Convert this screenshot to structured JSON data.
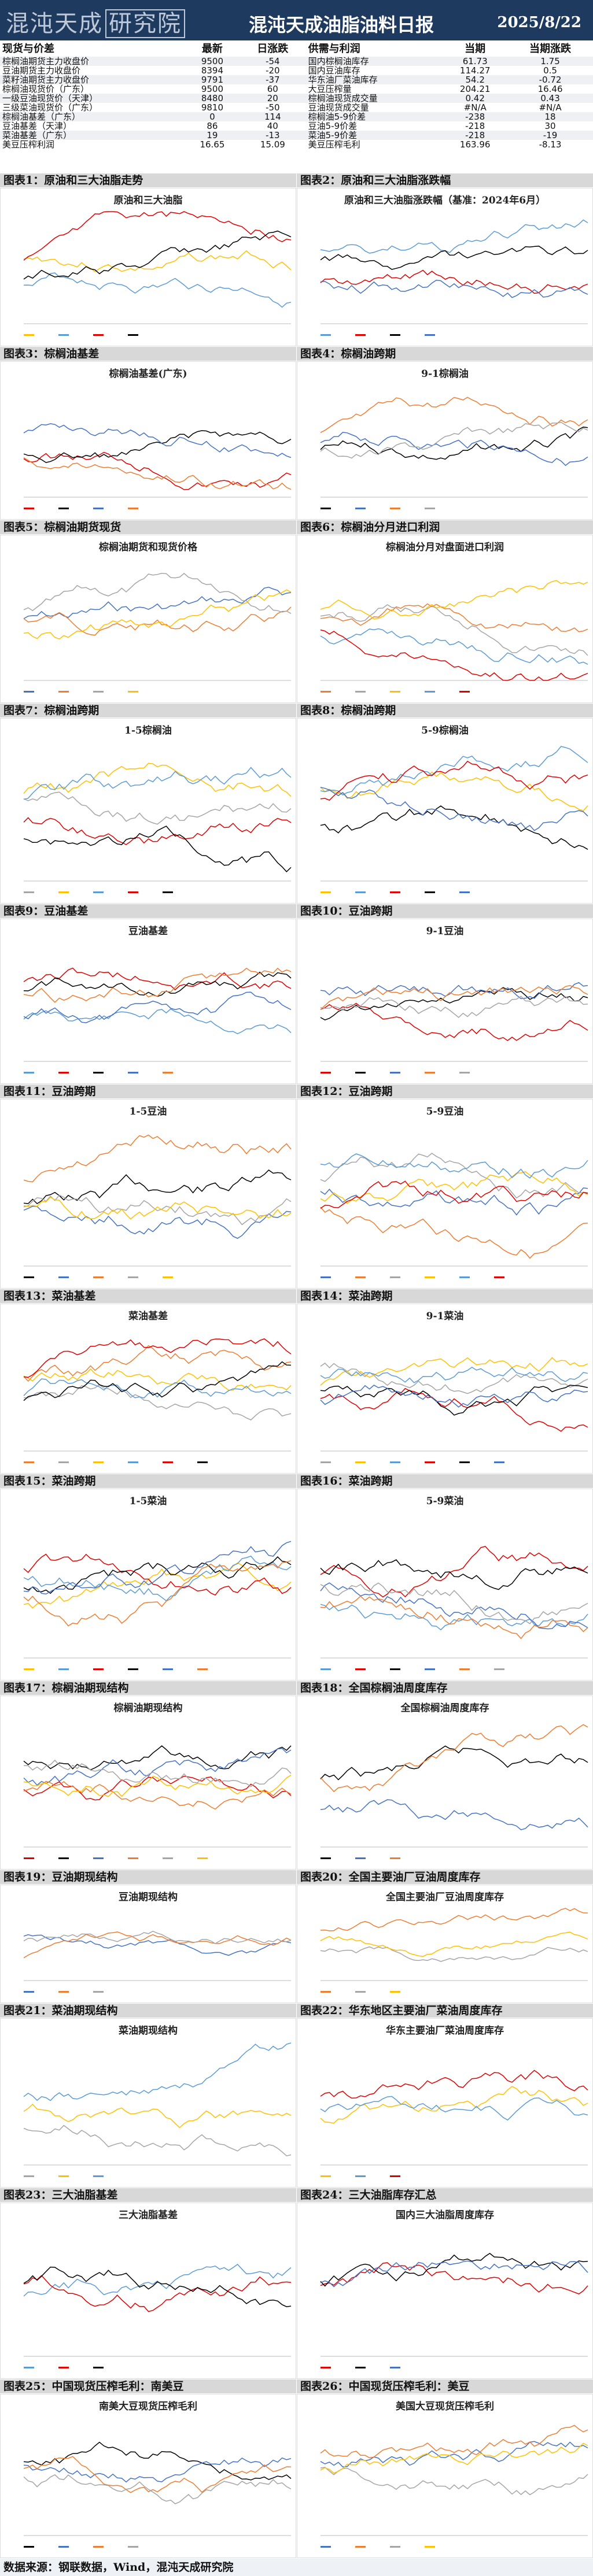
{
  "header": {
    "logo_text": "混沌天成",
    "logo_box": "研究院",
    "title": "混沌天成油脂油料日报",
    "date": "2025/8/22"
  },
  "quotes": {
    "headers": [
      "现货与价差",
      "最新",
      "日涨跌",
      "供需与利润",
      "当期",
      "当期涨跌"
    ],
    "rows": [
      [
        "棕榈油期货主力收盘价",
        "9500",
        "-54",
        "国内棕榈油库存",
        "61.73",
        "1.75"
      ],
      [
        "豆油期货主力收盘价",
        "8394",
        "-20",
        "国内豆油库存",
        "114.27",
        "0.5"
      ],
      [
        "菜籽油期货主力收盘价",
        "9791",
        "-37",
        "华东油厂菜油库存",
        "54.2",
        "-0.72"
      ],
      [
        "棕榈油现货价（广东）",
        "9500",
        "60",
        "大豆压榨量",
        "204.21",
        "16.46"
      ],
      [
        "一级豆油现货价（天津）",
        "8480",
        "20",
        "棕榈油现货成交量",
        "0.42",
        "0.43"
      ],
      [
        "三级菜油现货价（广东）",
        "9810",
        "-50",
        "豆油现货成交量",
        "#N/A",
        "#N/A"
      ],
      [
        "棕榈油基差（广东）",
        "0",
        "114",
        "棕榈油5-9价差",
        "-238",
        "18"
      ],
      [
        "豆油基差（天津）",
        "86",
        "40",
        "豆油5-9价差",
        "-218",
        "30"
      ],
      [
        "菜油基差（广东）",
        "19",
        "-13",
        "菜油5-9价差",
        "-218",
        "-19"
      ],
      [
        "美豆压榨利润",
        "16.65",
        "15.09",
        "美豆压榨毛利",
        "163.96",
        "-8.13"
      ]
    ]
  },
  "sections": [
    [
      "图表1：原油和三大油脂走势",
      "图表2：原油和三大油脂涨跌幅"
    ],
    [
      "图表3：棕榈油基差",
      "图表4：棕榈油跨期"
    ],
    [
      "图表5：棕榈油期货现货",
      "图表6：棕榈油分月进口利润"
    ],
    [
      "图表7：棕榈油跨期",
      "图表8：棕榈油跨期"
    ],
    [
      "图表9：豆油基差",
      "图表10：豆油跨期"
    ],
    [
      "图表11：豆油跨期",
      "图表12：豆油跨期"
    ],
    [
      "图表13：菜油基差",
      "图表14：菜油跨期"
    ],
    [
      "图表15：菜油跨期",
      "图表16：菜油跨期"
    ],
    [
      "图表17：棕榈油期现结构",
      "图表18：全国棕榈油周度库存"
    ],
    [
      "图表19：豆油期现结构",
      "图表20：全国主要油厂豆油周度库存"
    ],
    [
      "图表21：菜油期现结构",
      "图表22：华东地区主要油厂菜油周度库存"
    ],
    [
      "图表23：三大油脂基差",
      "图表24：三大油脂库存汇总"
    ],
    [
      "图表25：中国现货压榨毛利：南美豆",
      "图表26：中国现货压榨毛利：美豆"
    ]
  ],
  "panels": [
    [
      "原油和三大油脂",
      "原油和三大油脂涨跌幅（基准：2024年6月）"
    ],
    [
      "棕榈油基差(广东)",
      "9-1棕榈油"
    ],
    [
      "棕榈油期货和现货价格",
      "棕榈油分月对盘面进口利润"
    ],
    [
      "1-5棕榈油",
      "5-9棕榈油"
    ],
    [
      "豆油基差",
      "9-1豆油"
    ],
    [
      "1-5豆油",
      "5-9豆油"
    ],
    [
      "菜油基差",
      "9-1菜油"
    ],
    [
      "1-5菜油",
      "5-9菜油"
    ],
    [
      "棕榈油期现结构",
      "全国棕榈油周度库存"
    ],
    [
      "豆油期现结构",
      "全国主要油厂豆油周度库存"
    ],
    [
      "菜油期现结构",
      "华东主要油厂菜油周度库存"
    ],
    [
      "三大油脂基差",
      "国内三大油脂周度库存"
    ],
    [
      "南美大豆现货压榨毛利",
      "美国大豆现货压榨毛利"
    ]
  ],
  "footer": "数据来源：钢联数据，Wind，混沌天成研究院",
  "colors": {
    "header_bg": "#1f3a5f",
    "section_bg": "#d8d8d8",
    "y2019": "#4472c4",
    "y2020": "#ed7d31",
    "y2021": "#a5a5a5",
    "y2022": "#ffc000",
    "y2023": "#5b9bd5",
    "y2024": "#e00000",
    "y2025": "#000000"
  }
}
